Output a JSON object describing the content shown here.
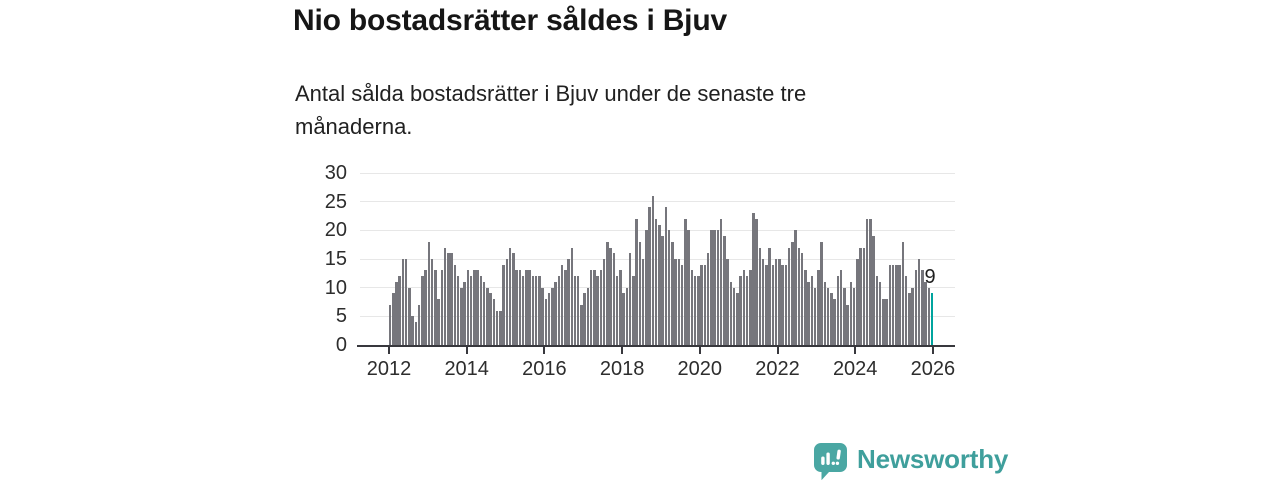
{
  "header": {
    "title": "Nio bostadsrätter såldes i Bjuv",
    "subtitle": "Antal sålda bostadsrätter i Bjuv under de senaste tre månaderna."
  },
  "chart_data": {
    "type": "bar",
    "title": "Nio bostadsrätter såldes i Bjuv",
    "subtitle": "Antal sålda bostadsrätter i Bjuv under de senaste tre månaderna.",
    "frequency": "monthly",
    "x_start": "2012-01",
    "x_end": "2025-12",
    "values": [
      7,
      9,
      11,
      12,
      15,
      15,
      10,
      5,
      4,
      7,
      12,
      13,
      18,
      15,
      13,
      8,
      13,
      17,
      16,
      16,
      14,
      12,
      10,
      11,
      13,
      12,
      13,
      13,
      12,
      11,
      10,
      9,
      8,
      6,
      6,
      14,
      15,
      17,
      16,
      13,
      13,
      12,
      13,
      13,
      12,
      12,
      12,
      10,
      8,
      9,
      10,
      11,
      12,
      14,
      13,
      15,
      17,
      12,
      12,
      7,
      9,
      10,
      13,
      13,
      12,
      13,
      15,
      18,
      17,
      16,
      12,
      13,
      9,
      10,
      16,
      12,
      22,
      18,
      15,
      20,
      24,
      26,
      22,
      21,
      19,
      24,
      20,
      18,
      15,
      15,
      14,
      22,
      20,
      13,
      12,
      12,
      14,
      14,
      16,
      20,
      20,
      20,
      22,
      19,
      15,
      11,
      10,
      9,
      12,
      13,
      12,
      13,
      23,
      22,
      17,
      15,
      14,
      17,
      14,
      15,
      15,
      14,
      14,
      17,
      18,
      20,
      17,
      16,
      13,
      11,
      12,
      10,
      13,
      18,
      11,
      10,
      9,
      8,
      12,
      13,
      10,
      7,
      11,
      10,
      15,
      17,
      17,
      22,
      22,
      19,
      12,
      11,
      8,
      8,
      14,
      14,
      14,
      14,
      18,
      12,
      9,
      10,
      13,
      15,
      13,
      11,
      10,
      9
    ],
    "highlight": {
      "index": 167,
      "label": "9",
      "color": "#00a49e"
    },
    "bar_color": "#76767c",
    "grid_color": "#e7e7e7",
    "axis_color": "#38383d",
    "ylim": [
      0,
      30
    ],
    "y_ticks": [
      0,
      5,
      10,
      15,
      20,
      25,
      30
    ],
    "x_tick_labels": [
      "2012",
      "2014",
      "2016",
      "2018",
      "2020",
      "2022",
      "2024",
      "2026"
    ],
    "grid": true,
    "legend": "none"
  },
  "footer": {
    "brand": "Newsworthy",
    "brand_color": "#3f9f9c",
    "icon_color": "#4aa7a3"
  }
}
